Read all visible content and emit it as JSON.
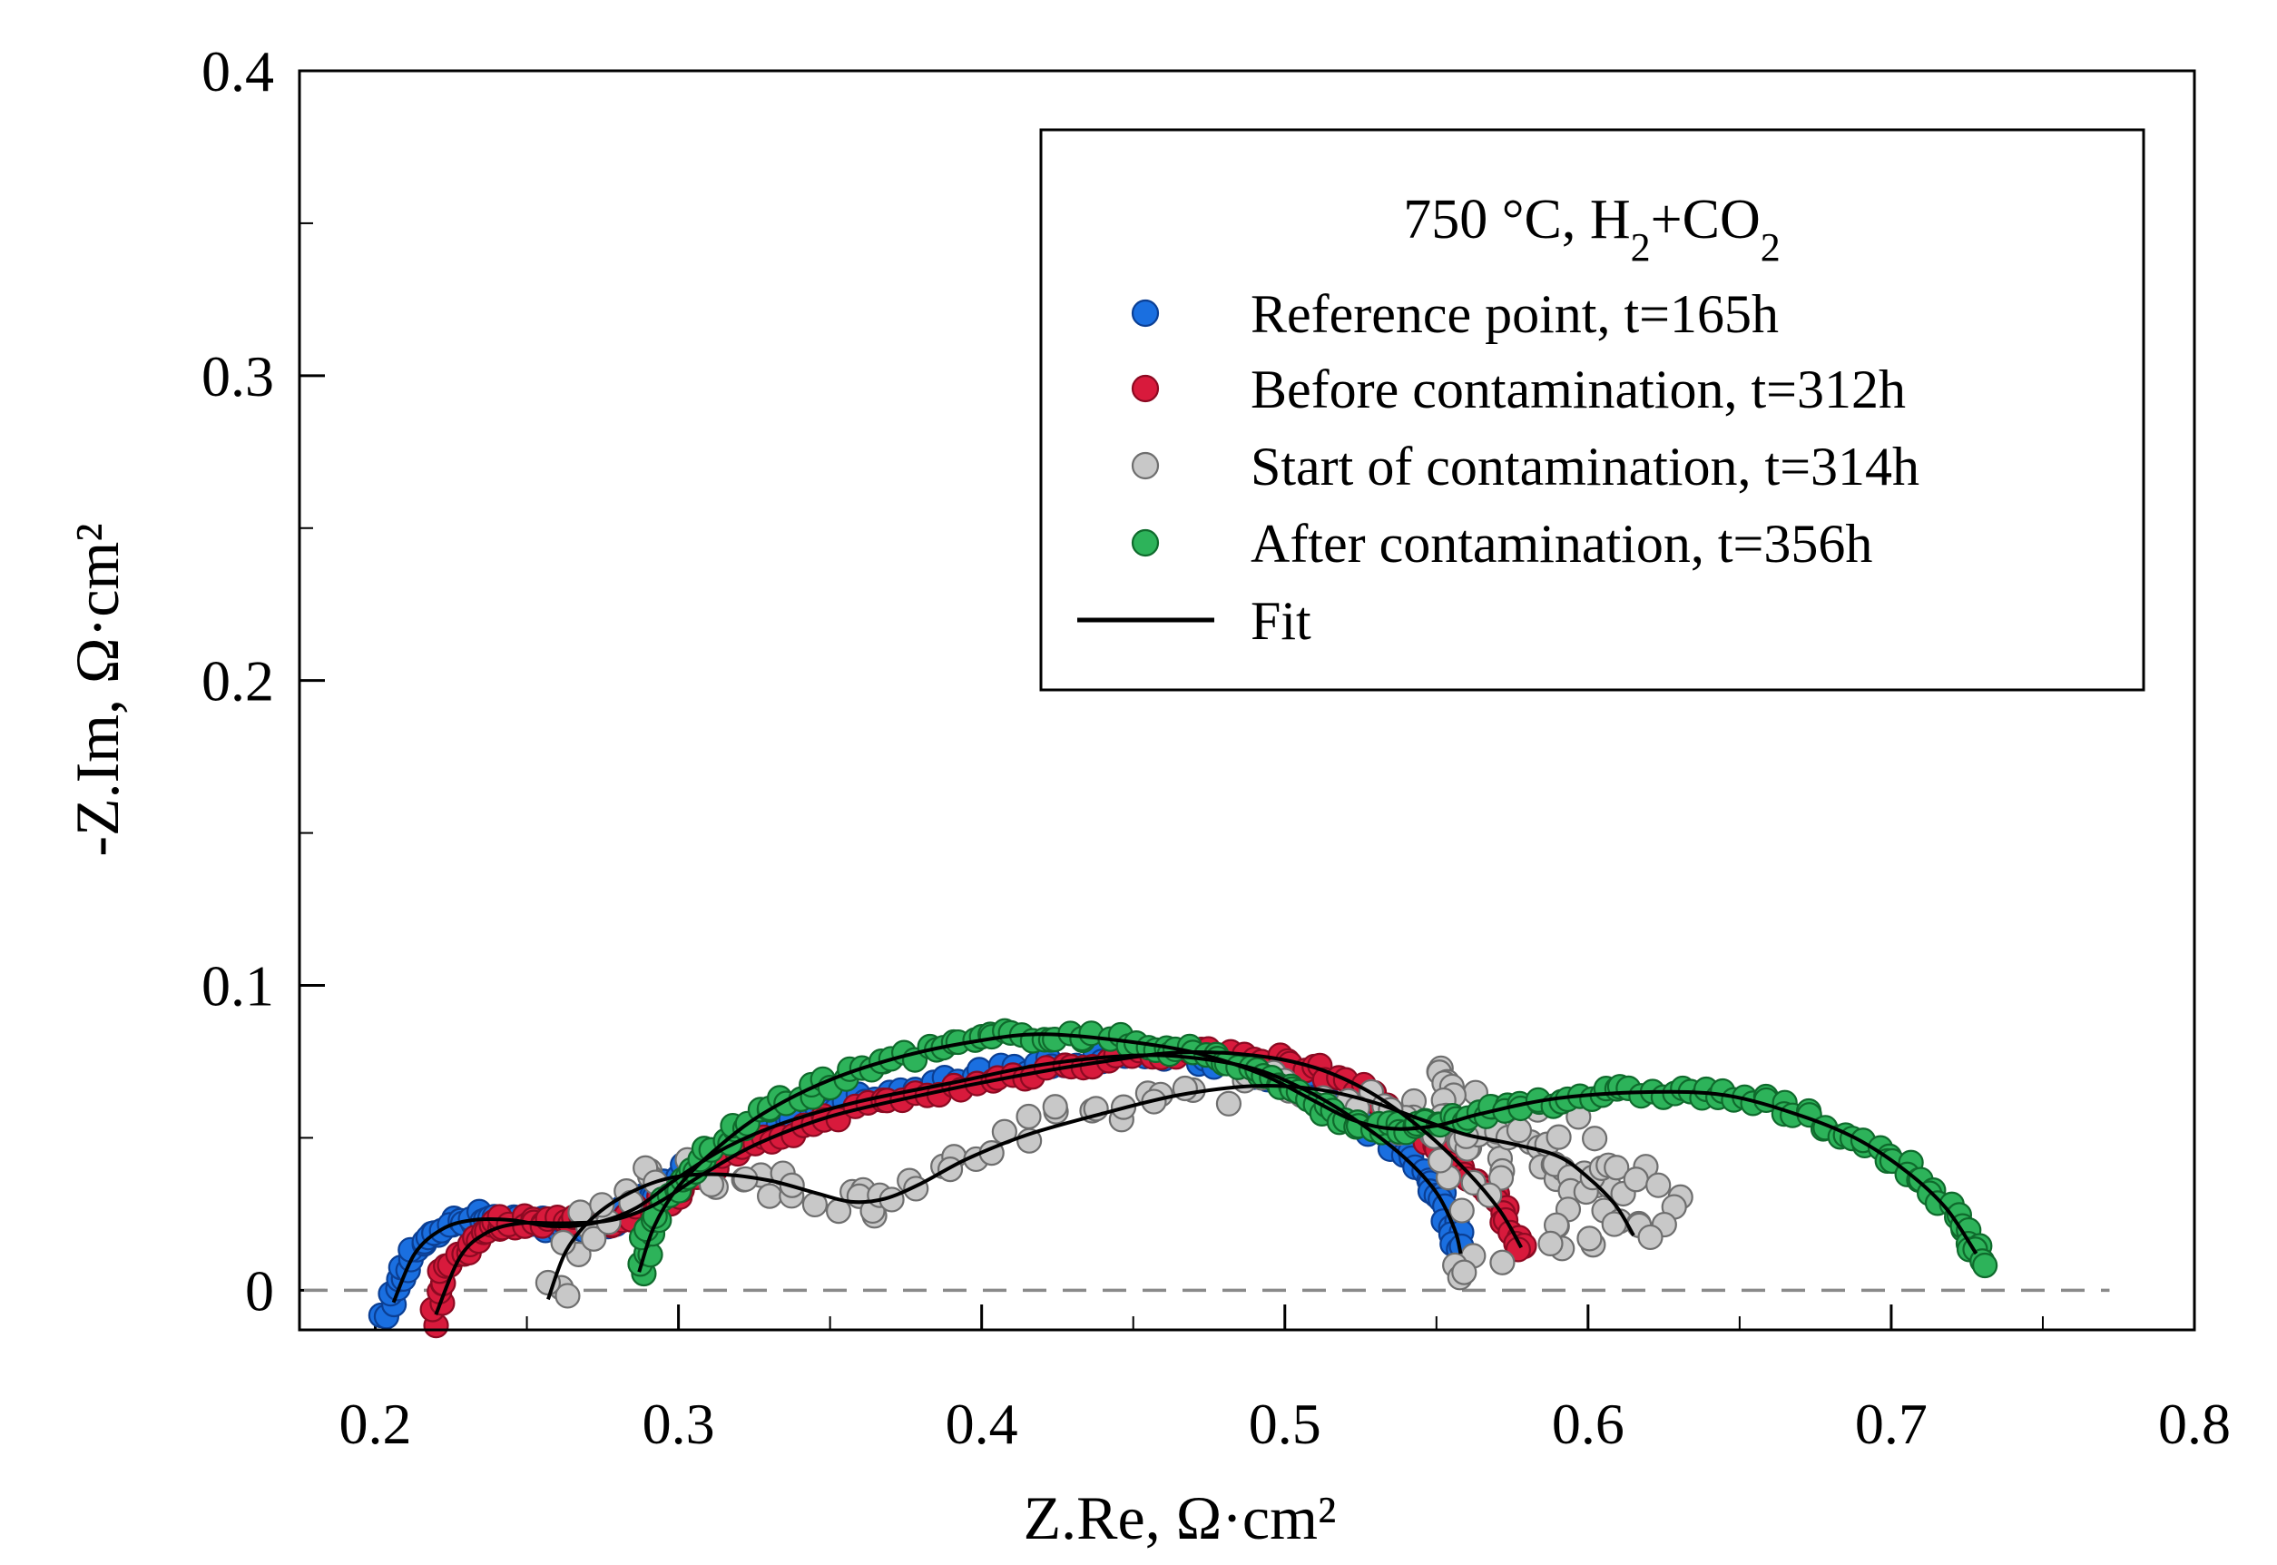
{
  "chart_data": {
    "type": "scatter",
    "title": "750 °C, H2+CO2",
    "title_parts": {
      "prefix": "750 °C, H",
      "sub1": "2",
      "mid": "+CO",
      "sub2": "2"
    },
    "xlabel": "Z.Re, Ω·cm²",
    "ylabel": "-Z.Im, Ω·cm²",
    "xlim": [
      0.175,
      0.8
    ],
    "ylim": [
      -0.013,
      0.4
    ],
    "xticks": [
      "0.2",
      "0.3",
      "0.4",
      "0.5",
      "0.6",
      "0.7",
      "0.8"
    ],
    "yticks": [
      "0",
      "0.1",
      "0.2",
      "0.3",
      "0.4"
    ],
    "legend_position": "top-right",
    "reference_line": {
      "y": 0,
      "style": "dashed"
    },
    "legend": [
      {
        "label": "Reference point, t=165h",
        "kind": "marker",
        "color": "#1a6fe0"
      },
      {
        "label": "Before contamination, t=312h",
        "kind": "marker",
        "color": "#d81a3c"
      },
      {
        "label": "Start of contamination, t=314h",
        "kind": "marker",
        "color": "#c8c8c8"
      },
      {
        "label": "After contamination, t=356h",
        "kind": "marker",
        "color": "#2db35a"
      },
      {
        "label": "Fit",
        "kind": "line",
        "color": "#000000"
      }
    ],
    "series": [
      {
        "name": "Reference point, t=165h",
        "color": "#1a6fe0",
        "edge": "#0b3f94",
        "spread": 0.012,
        "points": [
          [
            0.204,
            -0.01
          ],
          [
            0.207,
            0.003
          ],
          [
            0.212,
            0.012
          ],
          [
            0.218,
            0.018
          ],
          [
            0.225,
            0.022
          ],
          [
            0.232,
            0.024
          ],
          [
            0.24,
            0.024
          ],
          [
            0.247,
            0.023
          ],
          [
            0.254,
            0.022
          ],
          [
            0.26,
            0.021
          ],
          [
            0.268,
            0.021
          ],
          [
            0.276,
            0.022
          ],
          [
            0.285,
            0.026
          ],
          [
            0.295,
            0.033
          ],
          [
            0.305,
            0.041
          ],
          [
            0.318,
            0.049
          ],
          [
            0.332,
            0.055
          ],
          [
            0.348,
            0.06
          ],
          [
            0.365,
            0.064
          ],
          [
            0.385,
            0.068
          ],
          [
            0.405,
            0.072
          ],
          [
            0.425,
            0.075
          ],
          [
            0.445,
            0.077
          ],
          [
            0.462,
            0.077
          ],
          [
            0.478,
            0.075
          ],
          [
            0.492,
            0.072
          ],
          [
            0.505,
            0.066
          ],
          [
            0.517,
            0.06
          ],
          [
            0.528,
            0.053
          ],
          [
            0.538,
            0.046
          ],
          [
            0.546,
            0.037
          ],
          [
            0.552,
            0.029
          ],
          [
            0.556,
            0.021
          ],
          [
            0.557,
            0.014
          ]
        ]
      },
      {
        "name": "Before contamination, t=312h",
        "color": "#d81a3c",
        "edge": "#8c0a22",
        "spread": 0.012,
        "points": [
          [
            0.219,
            -0.01
          ],
          [
            0.222,
            0.004
          ],
          [
            0.228,
            0.013
          ],
          [
            0.234,
            0.019
          ],
          [
            0.241,
            0.022
          ],
          [
            0.249,
            0.023
          ],
          [
            0.257,
            0.023
          ],
          [
            0.265,
            0.022
          ],
          [
            0.274,
            0.022
          ],
          [
            0.284,
            0.024
          ],
          [
            0.294,
            0.029
          ],
          [
            0.305,
            0.036
          ],
          [
            0.318,
            0.044
          ],
          [
            0.333,
            0.051
          ],
          [
            0.35,
            0.057
          ],
          [
            0.37,
            0.062
          ],
          [
            0.39,
            0.066
          ],
          [
            0.41,
            0.07
          ],
          [
            0.43,
            0.074
          ],
          [
            0.45,
            0.077
          ],
          [
            0.468,
            0.078
          ],
          [
            0.485,
            0.077
          ],
          [
            0.5,
            0.075
          ],
          [
            0.514,
            0.071
          ],
          [
            0.528,
            0.064
          ],
          [
            0.541,
            0.055
          ],
          [
            0.552,
            0.046
          ],
          [
            0.562,
            0.037
          ],
          [
            0.57,
            0.028
          ],
          [
            0.576,
            0.02
          ],
          [
            0.579,
            0.012
          ]
        ]
      },
      {
        "name": "Start of contamination, t=314h",
        "color": "#c8c8c8",
        "edge": "#6e6e6e",
        "spread": 0.03,
        "points": [
          [
            0.257,
            -0.002
          ],
          [
            0.262,
            0.012
          ],
          [
            0.269,
            0.022
          ],
          [
            0.277,
            0.029
          ],
          [
            0.286,
            0.034
          ],
          [
            0.296,
            0.037
          ],
          [
            0.307,
            0.038
          ],
          [
            0.318,
            0.038
          ],
          [
            0.33,
            0.036
          ],
          [
            0.342,
            0.033
          ],
          [
            0.353,
            0.03
          ],
          [
            0.362,
            0.029
          ],
          [
            0.371,
            0.031
          ],
          [
            0.381,
            0.036
          ],
          [
            0.393,
            0.042
          ],
          [
            0.407,
            0.048
          ],
          [
            0.422,
            0.054
          ],
          [
            0.437,
            0.058
          ],
          [
            0.452,
            0.062
          ],
          [
            0.467,
            0.065
          ],
          [
            0.482,
            0.067
          ],
          [
            0.497,
            0.067
          ],
          [
            0.51,
            0.066
          ],
          [
            0.522,
            0.063
          ],
          [
            0.532,
            0.059
          ],
          [
            0.542,
            0.055
          ],
          [
            0.552,
            0.052
          ],
          [
            0.562,
            0.05
          ],
          [
            0.572,
            0.048
          ],
          [
            0.582,
            0.046
          ],
          [
            0.59,
            0.043
          ],
          [
            0.598,
            0.038
          ],
          [
            0.605,
            0.032
          ],
          [
            0.611,
            0.025
          ],
          [
            0.615,
            0.018
          ],
          [
            0.546,
            0.07
          ],
          [
            0.555,
            0.068
          ],
          [
            0.563,
            0.066
          ],
          [
            0.552,
            0.06
          ],
          [
            0.547,
            0.05
          ],
          [
            0.575,
            0.055
          ],
          [
            0.595,
            0.06
          ],
          [
            0.585,
            0.038
          ],
          [
            0.598,
            0.028
          ],
          [
            0.603,
            0.04
          ],
          [
            0.607,
            0.048
          ],
          [
            0.628,
            0.035
          ],
          [
            0.63,
            0.018
          ],
          [
            0.59,
            0.018
          ],
          [
            0.596,
            0.022
          ],
          [
            0.558,
            0.01
          ],
          [
            0.56,
            0.001
          ],
          [
            0.545,
            0.062
          ],
          [
            0.536,
            0.058
          ],
          [
            0.565,
            0.04
          ],
          [
            0.572,
            0.03
          ]
        ]
      },
      {
        "name": "After contamination, t=356h",
        "color": "#2db35a",
        "edge": "#0f6a2c",
        "spread": 0.012,
        "points": [
          [
            0.287,
            0.007
          ],
          [
            0.29,
            0.018
          ],
          [
            0.295,
            0.028
          ],
          [
            0.302,
            0.037
          ],
          [
            0.31,
            0.045
          ],
          [
            0.32,
            0.053
          ],
          [
            0.332,
            0.06
          ],
          [
            0.345,
            0.066
          ],
          [
            0.36,
            0.072
          ],
          [
            0.375,
            0.077
          ],
          [
            0.39,
            0.08
          ],
          [
            0.405,
            0.083
          ],
          [
            0.42,
            0.084
          ],
          [
            0.435,
            0.083
          ],
          [
            0.45,
            0.081
          ],
          [
            0.465,
            0.079
          ],
          [
            0.478,
            0.076
          ],
          [
            0.49,
            0.072
          ],
          [
            0.5,
            0.067
          ],
          [
            0.51,
            0.061
          ],
          [
            0.52,
            0.056
          ],
          [
            0.53,
            0.053
          ],
          [
            0.54,
            0.053
          ],
          [
            0.55,
            0.054
          ],
          [
            0.56,
            0.057
          ],
          [
            0.572,
            0.06
          ],
          [
            0.585,
            0.062
          ],
          [
            0.6,
            0.064
          ],
          [
            0.615,
            0.065
          ],
          [
            0.63,
            0.065
          ],
          [
            0.645,
            0.064
          ],
          [
            0.66,
            0.061
          ],
          [
            0.675,
            0.056
          ],
          [
            0.688,
            0.05
          ],
          [
            0.7,
            0.043
          ],
          [
            0.711,
            0.035
          ],
          [
            0.72,
            0.026
          ],
          [
            0.727,
            0.016
          ],
          [
            0.731,
            0.009
          ]
        ]
      }
    ],
    "fits": [
      {
        "name": "Fit (Reference point)",
        "points": [
          [
            0.206,
            -0.004
          ],
          [
            0.213,
            0.012
          ],
          [
            0.222,
            0.02
          ],
          [
            0.232,
            0.023
          ],
          [
            0.245,
            0.023
          ],
          [
            0.258,
            0.021
          ],
          [
            0.272,
            0.022
          ],
          [
            0.286,
            0.027
          ],
          [
            0.3,
            0.037
          ],
          [
            0.316,
            0.047
          ],
          [
            0.335,
            0.055
          ],
          [
            0.36,
            0.062
          ],
          [
            0.39,
            0.068
          ],
          [
            0.42,
            0.074
          ],
          [
            0.45,
            0.077
          ],
          [
            0.472,
            0.076
          ],
          [
            0.492,
            0.072
          ],
          [
            0.51,
            0.064
          ],
          [
            0.526,
            0.054
          ],
          [
            0.54,
            0.043
          ],
          [
            0.55,
            0.032
          ],
          [
            0.556,
            0.02
          ],
          [
            0.558,
            0.012
          ]
        ]
      },
      {
        "name": "Fit (Before contamination)",
        "points": [
          [
            0.22,
            -0.008
          ],
          [
            0.228,
            0.011
          ],
          [
            0.237,
            0.019
          ],
          [
            0.248,
            0.022
          ],
          [
            0.262,
            0.022
          ],
          [
            0.278,
            0.023
          ],
          [
            0.292,
            0.028
          ],
          [
            0.308,
            0.038
          ],
          [
            0.326,
            0.048
          ],
          [
            0.35,
            0.057
          ],
          [
            0.38,
            0.064
          ],
          [
            0.41,
            0.07
          ],
          [
            0.44,
            0.075
          ],
          [
            0.465,
            0.078
          ],
          [
            0.49,
            0.077
          ],
          [
            0.51,
            0.073
          ],
          [
            0.528,
            0.065
          ],
          [
            0.545,
            0.053
          ],
          [
            0.56,
            0.039
          ],
          [
            0.571,
            0.026
          ],
          [
            0.578,
            0.014
          ]
        ]
      },
      {
        "name": "Fit (Start of contamination)",
        "points": [
          [
            0.257,
            -0.003
          ],
          [
            0.263,
            0.013
          ],
          [
            0.272,
            0.024
          ],
          [
            0.284,
            0.032
          ],
          [
            0.298,
            0.037
          ],
          [
            0.314,
            0.038
          ],
          [
            0.33,
            0.036
          ],
          [
            0.345,
            0.032
          ],
          [
            0.357,
            0.029
          ],
          [
            0.368,
            0.03
          ],
          [
            0.38,
            0.035
          ],
          [
            0.395,
            0.043
          ],
          [
            0.415,
            0.051
          ],
          [
            0.44,
            0.058
          ],
          [
            0.465,
            0.064
          ],
          [
            0.49,
            0.067
          ],
          [
            0.51,
            0.066
          ],
          [
            0.528,
            0.062
          ],
          [
            0.545,
            0.056
          ],
          [
            0.56,
            0.051
          ],
          [
            0.575,
            0.048
          ],
          [
            0.59,
            0.044
          ],
          [
            0.6,
            0.037
          ],
          [
            0.609,
            0.028
          ],
          [
            0.615,
            0.018
          ]
        ]
      },
      {
        "name": "Fit (After contamination)",
        "points": [
          [
            0.287,
            0.006
          ],
          [
            0.292,
            0.021
          ],
          [
            0.3,
            0.034
          ],
          [
            0.312,
            0.046
          ],
          [
            0.328,
            0.058
          ],
          [
            0.35,
            0.069
          ],
          [
            0.375,
            0.077
          ],
          [
            0.4,
            0.082
          ],
          [
            0.42,
            0.084
          ],
          [
            0.445,
            0.082
          ],
          [
            0.47,
            0.078
          ],
          [
            0.492,
            0.071
          ],
          [
            0.508,
            0.063
          ],
          [
            0.522,
            0.056
          ],
          [
            0.535,
            0.053
          ],
          [
            0.55,
            0.054
          ],
          [
            0.565,
            0.058
          ],
          [
            0.59,
            0.063
          ],
          [
            0.62,
            0.065
          ],
          [
            0.645,
            0.064
          ],
          [
            0.668,
            0.058
          ],
          [
            0.688,
            0.05
          ],
          [
            0.705,
            0.039
          ],
          [
            0.718,
            0.027
          ],
          [
            0.728,
            0.012
          ]
        ]
      }
    ]
  }
}
